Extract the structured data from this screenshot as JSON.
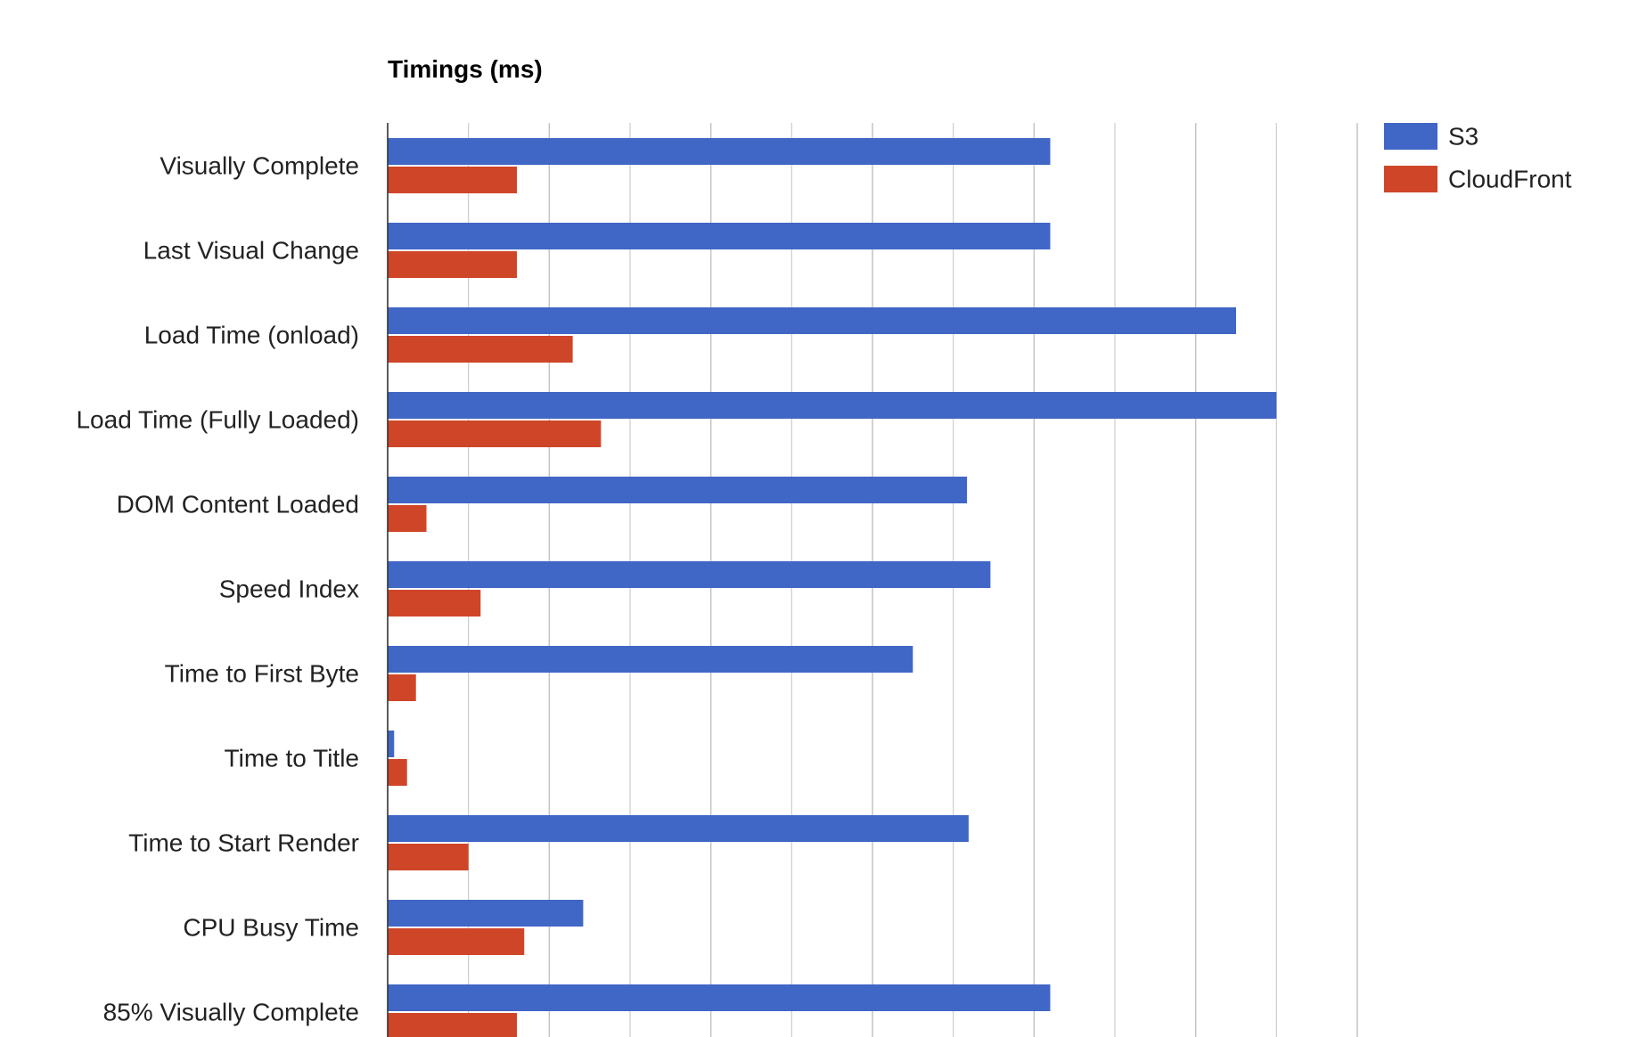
{
  "chart_data": {
    "type": "bar",
    "orientation": "horizontal",
    "title": "Timings (ms)",
    "xlabel": "",
    "ylabel": "",
    "categories": [
      "Visually Complete",
      "Last Visual Change",
      "Load Time (onload)",
      "Load Time (Fully Loaded)",
      "DOM Content Loaded",
      "Speed Index",
      "Time to First Byte",
      "Time to Title",
      "Time to Start Render",
      "CPU Busy Time",
      "85% Visually Complete"
    ],
    "series": [
      {
        "name": "S3",
        "color": "#4066c6",
        "values": [
          8200,
          8200,
          10500,
          11000,
          7170,
          7460,
          6500,
          80,
          7190,
          2420,
          8200
        ]
      },
      {
        "name": "CloudFront",
        "color": "#cf4528",
        "values": [
          1600,
          1600,
          2290,
          2640,
          480,
          1150,
          350,
          240,
          1000,
          1690,
          1600
        ]
      }
    ],
    "xlim": [
      0,
      12000
    ],
    "grid": true,
    "tick_labels_visible": false,
    "legend": "top-right"
  }
}
